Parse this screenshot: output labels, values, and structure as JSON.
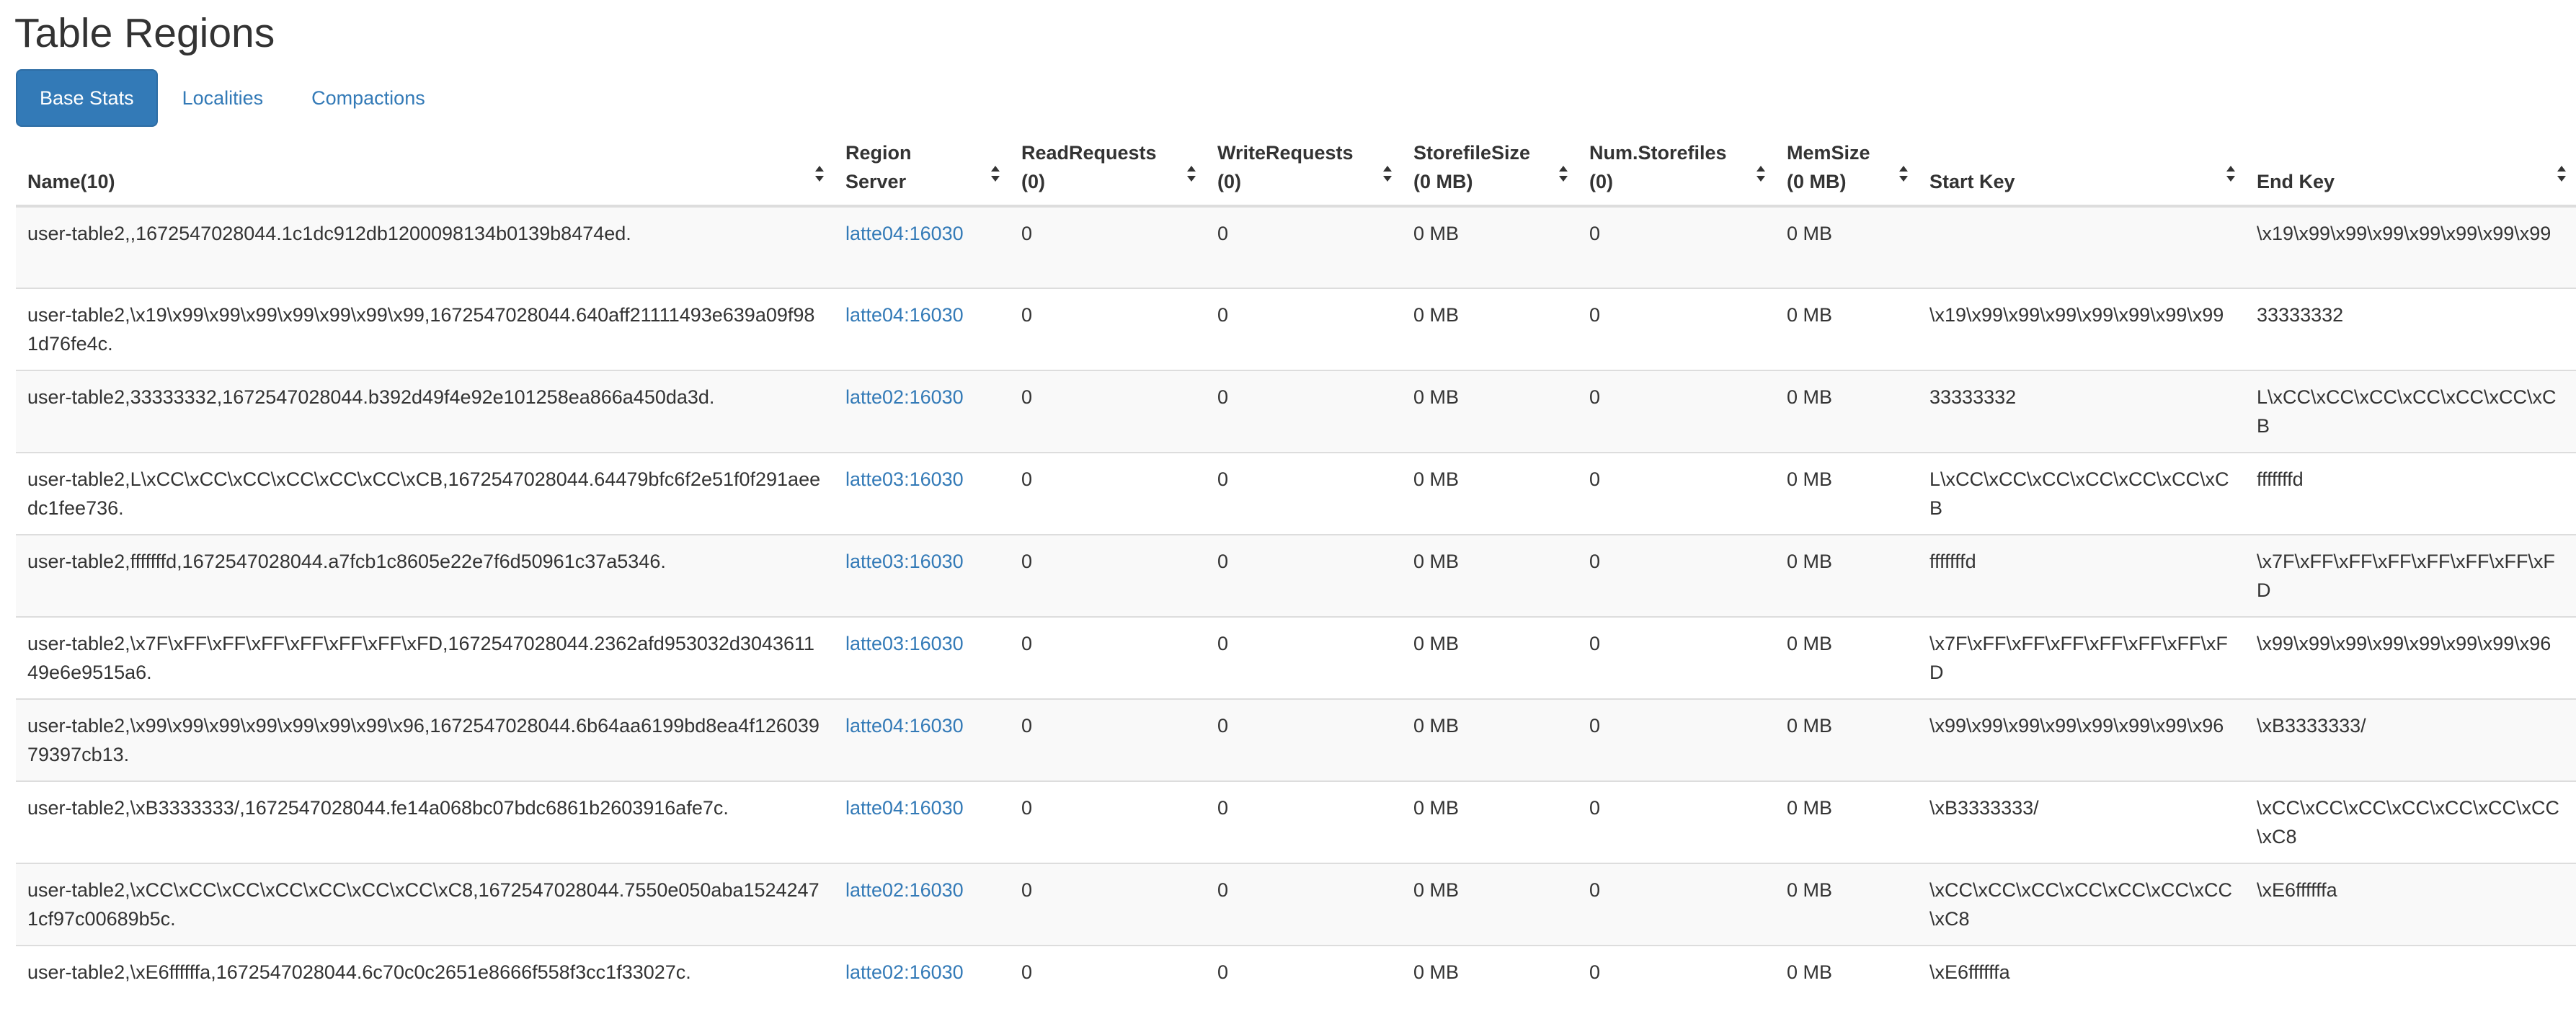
{
  "page_title": "Table Regions",
  "tabs": [
    {
      "label": "Base Stats",
      "active": true
    },
    {
      "label": "Localities",
      "active": false
    },
    {
      "label": "Compactions",
      "active": false
    }
  ],
  "table": {
    "columns": [
      {
        "line1": "Name(10)",
        "line2": ""
      },
      {
        "line1": "Region",
        "line2": "Server"
      },
      {
        "line1": "ReadRequests",
        "line2": "(0)"
      },
      {
        "line1": "WriteRequests",
        "line2": "(0)"
      },
      {
        "line1": "StorefileSize",
        "line2": "(0 MB)"
      },
      {
        "line1": "Num.Storefiles",
        "line2": "(0)"
      },
      {
        "line1": "MemSize",
        "line2": "(0 MB)"
      },
      {
        "line1": "Start Key",
        "line2": ""
      },
      {
        "line1": "End Key",
        "line2": ""
      }
    ],
    "rows": [
      {
        "name": "user-table2,,1672547028044.1c1dc912db1200098134b0139b8474ed.",
        "server": "latte04:16030",
        "read": "0",
        "write": "0",
        "storefile_size": "0 MB",
        "num_storefiles": "0",
        "mem_size": "0 MB",
        "start_key": "",
        "end_key": "\\x19\\x99\\x99\\x99\\x99\\x99\\x99\\x99"
      },
      {
        "name": "user-table2,\\x19\\x99\\x99\\x99\\x99\\x99\\x99\\x99,1672547028044.640aff21111493e639a09f981d76fe4c.",
        "server": "latte04:16030",
        "read": "0",
        "write": "0",
        "storefile_size": "0 MB",
        "num_storefiles": "0",
        "mem_size": "0 MB",
        "start_key": "\\x19\\x99\\x99\\x99\\x99\\x99\\x99\\x99",
        "end_key": "33333332"
      },
      {
        "name": "user-table2,33333332,1672547028044.b392d49f4e92e101258ea866a450da3d.",
        "server": "latte02:16030",
        "read": "0",
        "write": "0",
        "storefile_size": "0 MB",
        "num_storefiles": "0",
        "mem_size": "0 MB",
        "start_key": "33333332",
        "end_key": "L\\xCC\\xCC\\xCC\\xCC\\xCC\\xCC\\xCB"
      },
      {
        "name": "user-table2,L\\xCC\\xCC\\xCC\\xCC\\xCC\\xCC\\xCB,1672547028044.64479bfc6f2e51f0f291aeedc1fee736.",
        "server": "latte03:16030",
        "read": "0",
        "write": "0",
        "storefile_size": "0 MB",
        "num_storefiles": "0",
        "mem_size": "0 MB",
        "start_key": "L\\xCC\\xCC\\xCC\\xCC\\xCC\\xCC\\xCB",
        "end_key": "fffffffd"
      },
      {
        "name": "user-table2,fffffffd,1672547028044.a7fcb1c8605e22e7f6d50961c37a5346.",
        "server": "latte03:16030",
        "read": "0",
        "write": "0",
        "storefile_size": "0 MB",
        "num_storefiles": "0",
        "mem_size": "0 MB",
        "start_key": "fffffffd",
        "end_key": "\\x7F\\xFF\\xFF\\xFF\\xFF\\xFF\\xFF\\xFD"
      },
      {
        "name": "user-table2,\\x7F\\xFF\\xFF\\xFF\\xFF\\xFF\\xFF\\xFD,1672547028044.2362afd953032d304361149e6e9515a6.",
        "server": "latte03:16030",
        "read": "0",
        "write": "0",
        "storefile_size": "0 MB",
        "num_storefiles": "0",
        "mem_size": "0 MB",
        "start_key": "\\x7F\\xFF\\xFF\\xFF\\xFF\\xFF\\xFF\\xFD",
        "end_key": "\\x99\\x99\\x99\\x99\\x99\\x99\\x99\\x96"
      },
      {
        "name": "user-table2,\\x99\\x99\\x99\\x99\\x99\\x99\\x99\\x96,1672547028044.6b64aa6199bd8ea4f12603979397cb13.",
        "server": "latte04:16030",
        "read": "0",
        "write": "0",
        "storefile_size": "0 MB",
        "num_storefiles": "0",
        "mem_size": "0 MB",
        "start_key": "\\x99\\x99\\x99\\x99\\x99\\x99\\x99\\x96",
        "end_key": "\\xB3333333/"
      },
      {
        "name": "user-table2,\\xB3333333/,1672547028044.fe14a068bc07bdc6861b2603916afe7c.",
        "server": "latte04:16030",
        "read": "0",
        "write": "0",
        "storefile_size": "0 MB",
        "num_storefiles": "0",
        "mem_size": "0 MB",
        "start_key": "\\xB3333333/",
        "end_key": "\\xCC\\xCC\\xCC\\xCC\\xCC\\xCC\\xCC\\xC8"
      },
      {
        "name": "user-table2,\\xCC\\xCC\\xCC\\xCC\\xCC\\xCC\\xCC\\xC8,1672547028044.7550e050aba15242471cf97c00689b5c.",
        "server": "latte02:16030",
        "read": "0",
        "write": "0",
        "storefile_size": "0 MB",
        "num_storefiles": "0",
        "mem_size": "0 MB",
        "start_key": "\\xCC\\xCC\\xCC\\xCC\\xCC\\xCC\\xCC\\xC8",
        "end_key": "\\xE6ffffffa"
      },
      {
        "name": "user-table2,\\xE6ffffffa,1672547028044.6c70c0c2651e8666f558f3cc1f33027c.",
        "server": "latte02:16030",
        "read": "0",
        "write": "0",
        "storefile_size": "0 MB",
        "num_storefiles": "0",
        "mem_size": "0 MB",
        "start_key": "\\xE6ffffffa",
        "end_key": ""
      }
    ]
  },
  "icons": {
    "sort": "sort-both-icon"
  },
  "colors": {
    "link": "#337ab7",
    "active_tab_bg": "#337ab7",
    "stripe": "#f9f9f9",
    "border": "#dddddd",
    "text": "#333333"
  }
}
